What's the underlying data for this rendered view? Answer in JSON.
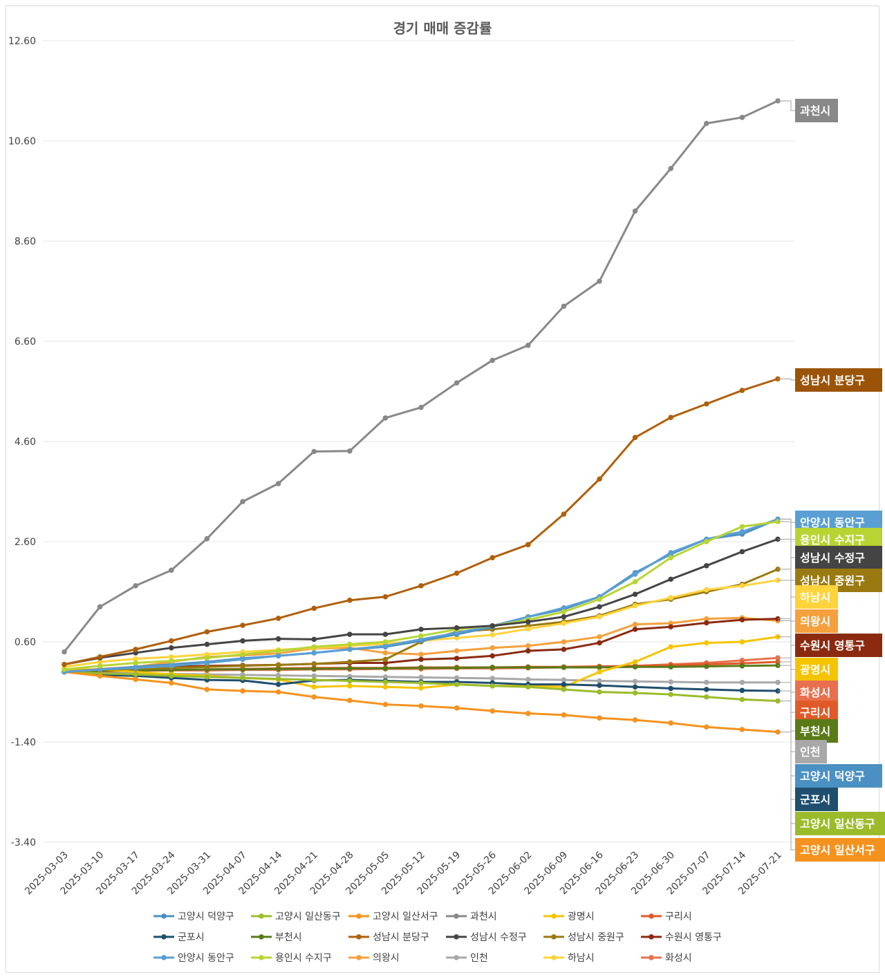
{
  "chart_data": {
    "type": "line",
    "title": "경기 매매 증감률",
    "xlabel": "",
    "ylabel": "",
    "ylim": [
      -3.4,
      12.6
    ],
    "yticks": [
      "12.60",
      "10.60",
      "8.60",
      "6.60",
      "4.60",
      "2.60",
      "0.60",
      "-1.40",
      "-3.40"
    ],
    "grid": true,
    "legend_position": "bottom",
    "categories": [
      "2025-03-03",
      "2025-03-10",
      "2025-03-17",
      "2025-03-24",
      "2025-03-31",
      "2025-04-07",
      "2025-04-14",
      "2025-04-21",
      "2025-04-28",
      "2025-05-05",
      "2025-05-12",
      "2025-05-19",
      "2025-05-26",
      "2025-06-02",
      "2025-06-09",
      "2025-06-16",
      "2025-06-23",
      "2025-06-30",
      "2025-07-07",
      "2025-07-14",
      "2025-07-21"
    ],
    "series": [
      {
        "name": "고양시 덕양구",
        "color": "#4a90c2",
        "values": [
          0.0,
          0.05,
          0.1,
          0.15,
          0.2,
          0.27,
          0.32,
          0.38,
          0.45,
          0.5,
          0.62,
          0.75,
          0.9,
          1.1,
          1.25,
          1.5,
          1.98,
          2.35,
          2.65,
          2.75,
          3.05
        ]
      },
      {
        "name": "고양시 일산동구",
        "color": "#9bbb2a",
        "values": [
          0.0,
          -0.03,
          -0.05,
          -0.08,
          -0.1,
          -0.12,
          -0.14,
          -0.16,
          -0.18,
          -0.2,
          -0.22,
          -0.25,
          -0.28,
          -0.3,
          -0.35,
          -0.4,
          -0.42,
          -0.45,
          -0.5,
          -0.55,
          -0.58
        ]
      },
      {
        "name": "고양시 일산서구",
        "color": "#f5921e",
        "values": [
          0.0,
          -0.08,
          -0.15,
          -0.22,
          -0.35,
          -0.38,
          -0.4,
          -0.5,
          -0.57,
          -0.65,
          -0.68,
          -0.72,
          -0.78,
          -0.83,
          -0.86,
          -0.92,
          -0.96,
          -1.02,
          -1.1,
          -1.15,
          -1.2
        ]
      },
      {
        "name": "과천시",
        "color": "#888888",
        "values": [
          0.4,
          1.3,
          1.72,
          2.03,
          2.66,
          3.4,
          3.76,
          4.4,
          4.41,
          5.07,
          5.28,
          5.77,
          6.22,
          6.52,
          7.3,
          7.8,
          9.2,
          10.05,
          10.95,
          11.07,
          11.4
        ]
      },
      {
        "name": "광명시",
        "color": "#f5c400",
        "values": [
          0.05,
          0.05,
          0.0,
          -0.05,
          -0.08,
          -0.12,
          -0.15,
          -0.3,
          -0.28,
          -0.3,
          -0.32,
          -0.25,
          -0.28,
          -0.27,
          -0.3,
          0.0,
          0.2,
          0.5,
          0.58,
          0.6,
          0.7
        ]
      },
      {
        "name": "구리시",
        "color": "#e05a28",
        "values": [
          0.0,
          0.02,
          0.03,
          0.04,
          0.05,
          0.06,
          0.07,
          0.08,
          0.08,
          0.08,
          0.09,
          0.09,
          0.09,
          0.1,
          0.1,
          0.11,
          0.12,
          0.13,
          0.15,
          0.17,
          0.2
        ]
      },
      {
        "name": "군포시",
        "color": "#1f4e6e",
        "values": [
          0.0,
          -0.06,
          -0.08,
          -0.12,
          -0.16,
          -0.17,
          -0.25,
          -0.17,
          -0.16,
          -0.18,
          -0.2,
          -0.2,
          -0.22,
          -0.25,
          -0.25,
          -0.27,
          -0.3,
          -0.33,
          -0.35,
          -0.37,
          -0.38
        ]
      },
      {
        "name": "부천시",
        "color": "#5a7a18",
        "values": [
          0.0,
          0.02,
          0.03,
          0.04,
          0.05,
          0.05,
          0.06,
          0.06,
          0.07,
          0.07,
          0.08,
          0.08,
          0.09,
          0.09,
          0.09,
          0.09,
          0.1,
          0.1,
          0.11,
          0.12,
          0.13
        ]
      },
      {
        "name": "성남시 분당구",
        "color": "#b05f0a",
        "values": [
          0.15,
          0.3,
          0.45,
          0.62,
          0.8,
          0.93,
          1.07,
          1.27,
          1.43,
          1.5,
          1.72,
          1.97,
          2.28,
          2.54,
          3.15,
          3.85,
          4.68,
          5.08,
          5.35,
          5.62,
          5.85
        ]
      },
      {
        "name": "성남시 수정구",
        "color": "#444444",
        "values": [
          0.15,
          0.28,
          0.38,
          0.48,
          0.55,
          0.62,
          0.66,
          0.65,
          0.75,
          0.75,
          0.85,
          0.88,
          0.92,
          1.0,
          1.1,
          1.3,
          1.55,
          1.85,
          2.12,
          2.4,
          2.65
        ]
      },
      {
        "name": "성남시 중원구",
        "color": "#9a7a10",
        "values": [
          0.0,
          0.04,
          0.06,
          0.08,
          0.1,
          0.12,
          0.14,
          0.16,
          0.2,
          0.25,
          0.6,
          0.8,
          0.85,
          0.92,
          1.0,
          1.12,
          1.35,
          1.45,
          1.6,
          1.75,
          2.05
        ]
      },
      {
        "name": "수원시 영통구",
        "color": "#8b2a10",
        "values": [
          0.0,
          0.05,
          0.08,
          0.1,
          0.12,
          0.13,
          0.14,
          0.16,
          0.18,
          0.18,
          0.25,
          0.27,
          0.32,
          0.42,
          0.45,
          0.58,
          0.85,
          0.9,
          0.98,
          1.04,
          1.06
        ]
      },
      {
        "name": "안양시 동안구",
        "color": "#5a9fd4",
        "values": [
          0.0,
          0.05,
          0.08,
          0.12,
          0.18,
          0.25,
          0.32,
          0.38,
          0.45,
          0.52,
          0.65,
          0.78,
          0.92,
          1.1,
          1.28,
          1.5,
          1.95,
          2.38,
          2.65,
          2.8,
          3.05
        ]
      },
      {
        "name": "용인시 수지구",
        "color": "#b8d432",
        "values": [
          0.05,
          0.12,
          0.18,
          0.22,
          0.28,
          0.35,
          0.42,
          0.5,
          0.55,
          0.6,
          0.72,
          0.85,
          0.92,
          1.04,
          1.2,
          1.45,
          1.8,
          2.28,
          2.6,
          2.9,
          3.0
        ]
      },
      {
        "name": "의왕시",
        "color": "#f5a03c",
        "values": [
          0.0,
          0.06,
          0.1,
          0.2,
          0.3,
          0.33,
          0.37,
          0.47,
          0.48,
          0.38,
          0.35,
          0.42,
          0.48,
          0.52,
          0.6,
          0.7,
          0.95,
          0.97,
          1.06,
          1.08,
          1.02
        ]
      },
      {
        "name": "인천",
        "color": "#a8a8a8",
        "values": [
          0.0,
          -0.02,
          -0.03,
          -0.04,
          -0.05,
          -0.06,
          -0.07,
          -0.08,
          -0.09,
          -0.1,
          -0.11,
          -0.12,
          -0.13,
          -0.15,
          -0.16,
          -0.18,
          -0.19,
          -0.2,
          -0.21,
          -0.21,
          -0.21
        ]
      },
      {
        "name": "하남시",
        "color": "#ffd33c",
        "values": [
          0.1,
          0.2,
          0.26,
          0.3,
          0.35,
          0.4,
          0.44,
          0.48,
          0.52,
          0.56,
          0.62,
          0.68,
          0.74,
          0.86,
          0.97,
          1.1,
          1.32,
          1.48,
          1.64,
          1.72,
          1.83
        ]
      },
      {
        "name": "화성시",
        "color": "#e8704e",
        "values": [
          0.0,
          0.01,
          0.02,
          0.03,
          0.03,
          0.04,
          0.04,
          0.05,
          0.05,
          0.06,
          0.06,
          0.07,
          0.07,
          0.08,
          0.09,
          0.1,
          0.12,
          0.15,
          0.18,
          0.23,
          0.28
        ]
      }
    ],
    "end_labels": [
      {
        "series": "과천시",
        "text": "과천시",
        "color": "#888888"
      },
      {
        "series": "성남시 분당구",
        "text": "성남시 분당구",
        "color": "#9b5407"
      },
      {
        "series": "안양시 동안구",
        "text": "안양시 동안구",
        "color": "#5a9fd4"
      },
      {
        "series": "용인시 수지구",
        "text": "용인시 수지구",
        "color": "#b8d432"
      },
      {
        "series": "성남시 수정구",
        "text": "성남시 수정구",
        "color": "#444444"
      },
      {
        "series": "성남시 중원구",
        "text": "성남시 중원구",
        "color": "#9a7a10"
      },
      {
        "series": "하남시",
        "text": "하남시",
        "color": "#ffd33c"
      },
      {
        "series": "의왕시",
        "text": "의왕시",
        "color": "#f5a03c"
      },
      {
        "series": "수원시 영통구",
        "text": "수원시 영통구",
        "color": "#8b2a10"
      },
      {
        "series": "광명시",
        "text": "광명시",
        "color": "#f5c400"
      },
      {
        "series": "화성시",
        "text": "화성시",
        "color": "#e8704e"
      },
      {
        "series": "구리시",
        "text": "구리시",
        "color": "#e05a28"
      },
      {
        "series": "부천시",
        "text": "부천시",
        "color": "#5a7a18"
      },
      {
        "series": "인천",
        "text": "인천",
        "color": "#a8a8a8"
      },
      {
        "series": "고양시 덕양구",
        "text": "고양시 덕양구",
        "color": "#4a90c2"
      },
      {
        "series": "군포시",
        "text": "군포시",
        "color": "#1f4e6e"
      },
      {
        "series": "고양시 일산동구",
        "text": "고양시 일산동구",
        "color": "#9bbb2a"
      },
      {
        "series": "고양시 일산서구",
        "text": "고양시 일산서구",
        "color": "#f5921e"
      }
    ]
  }
}
